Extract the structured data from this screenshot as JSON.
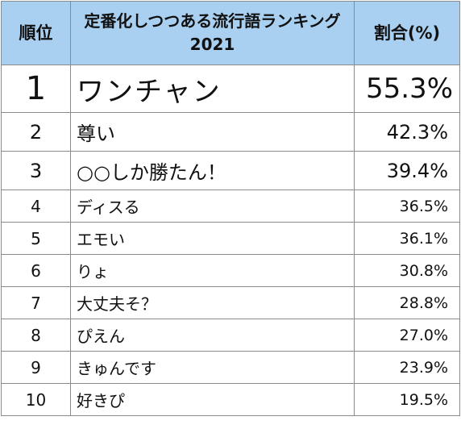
{
  "header": {
    "rank_label": "順位",
    "title": "定番化しつつある流行語ランキング 2021",
    "ratio_label": "割合(%)"
  },
  "rows": [
    {
      "rank": "1",
      "term": "ワンチャン",
      "pct": "55.3%"
    },
    {
      "rank": "2",
      "term": "尊い",
      "pct": "42.3%"
    },
    {
      "rank": "3",
      "term": "○○しか勝たん！",
      "pct": "39.4%"
    },
    {
      "rank": "4",
      "term": "ディスる",
      "pct": "36.5%"
    },
    {
      "rank": "5",
      "term": "エモい",
      "pct": "36.1%"
    },
    {
      "rank": "6",
      "term": "りょ",
      "pct": "30.8%"
    },
    {
      "rank": "7",
      "term": "大丈夫そ？",
      "pct": "28.8%"
    },
    {
      "rank": "8",
      "term": "ぴえん",
      "pct": "27.0%"
    },
    {
      "rank": "9",
      "term": "きゅんです",
      "pct": "23.9%"
    },
    {
      "rank": "10",
      "term": "好きぴ",
      "pct": "19.5%"
    }
  ],
  "colors": {
    "header_bg": "#a9d0f0",
    "grid": "#8a8a8a"
  }
}
